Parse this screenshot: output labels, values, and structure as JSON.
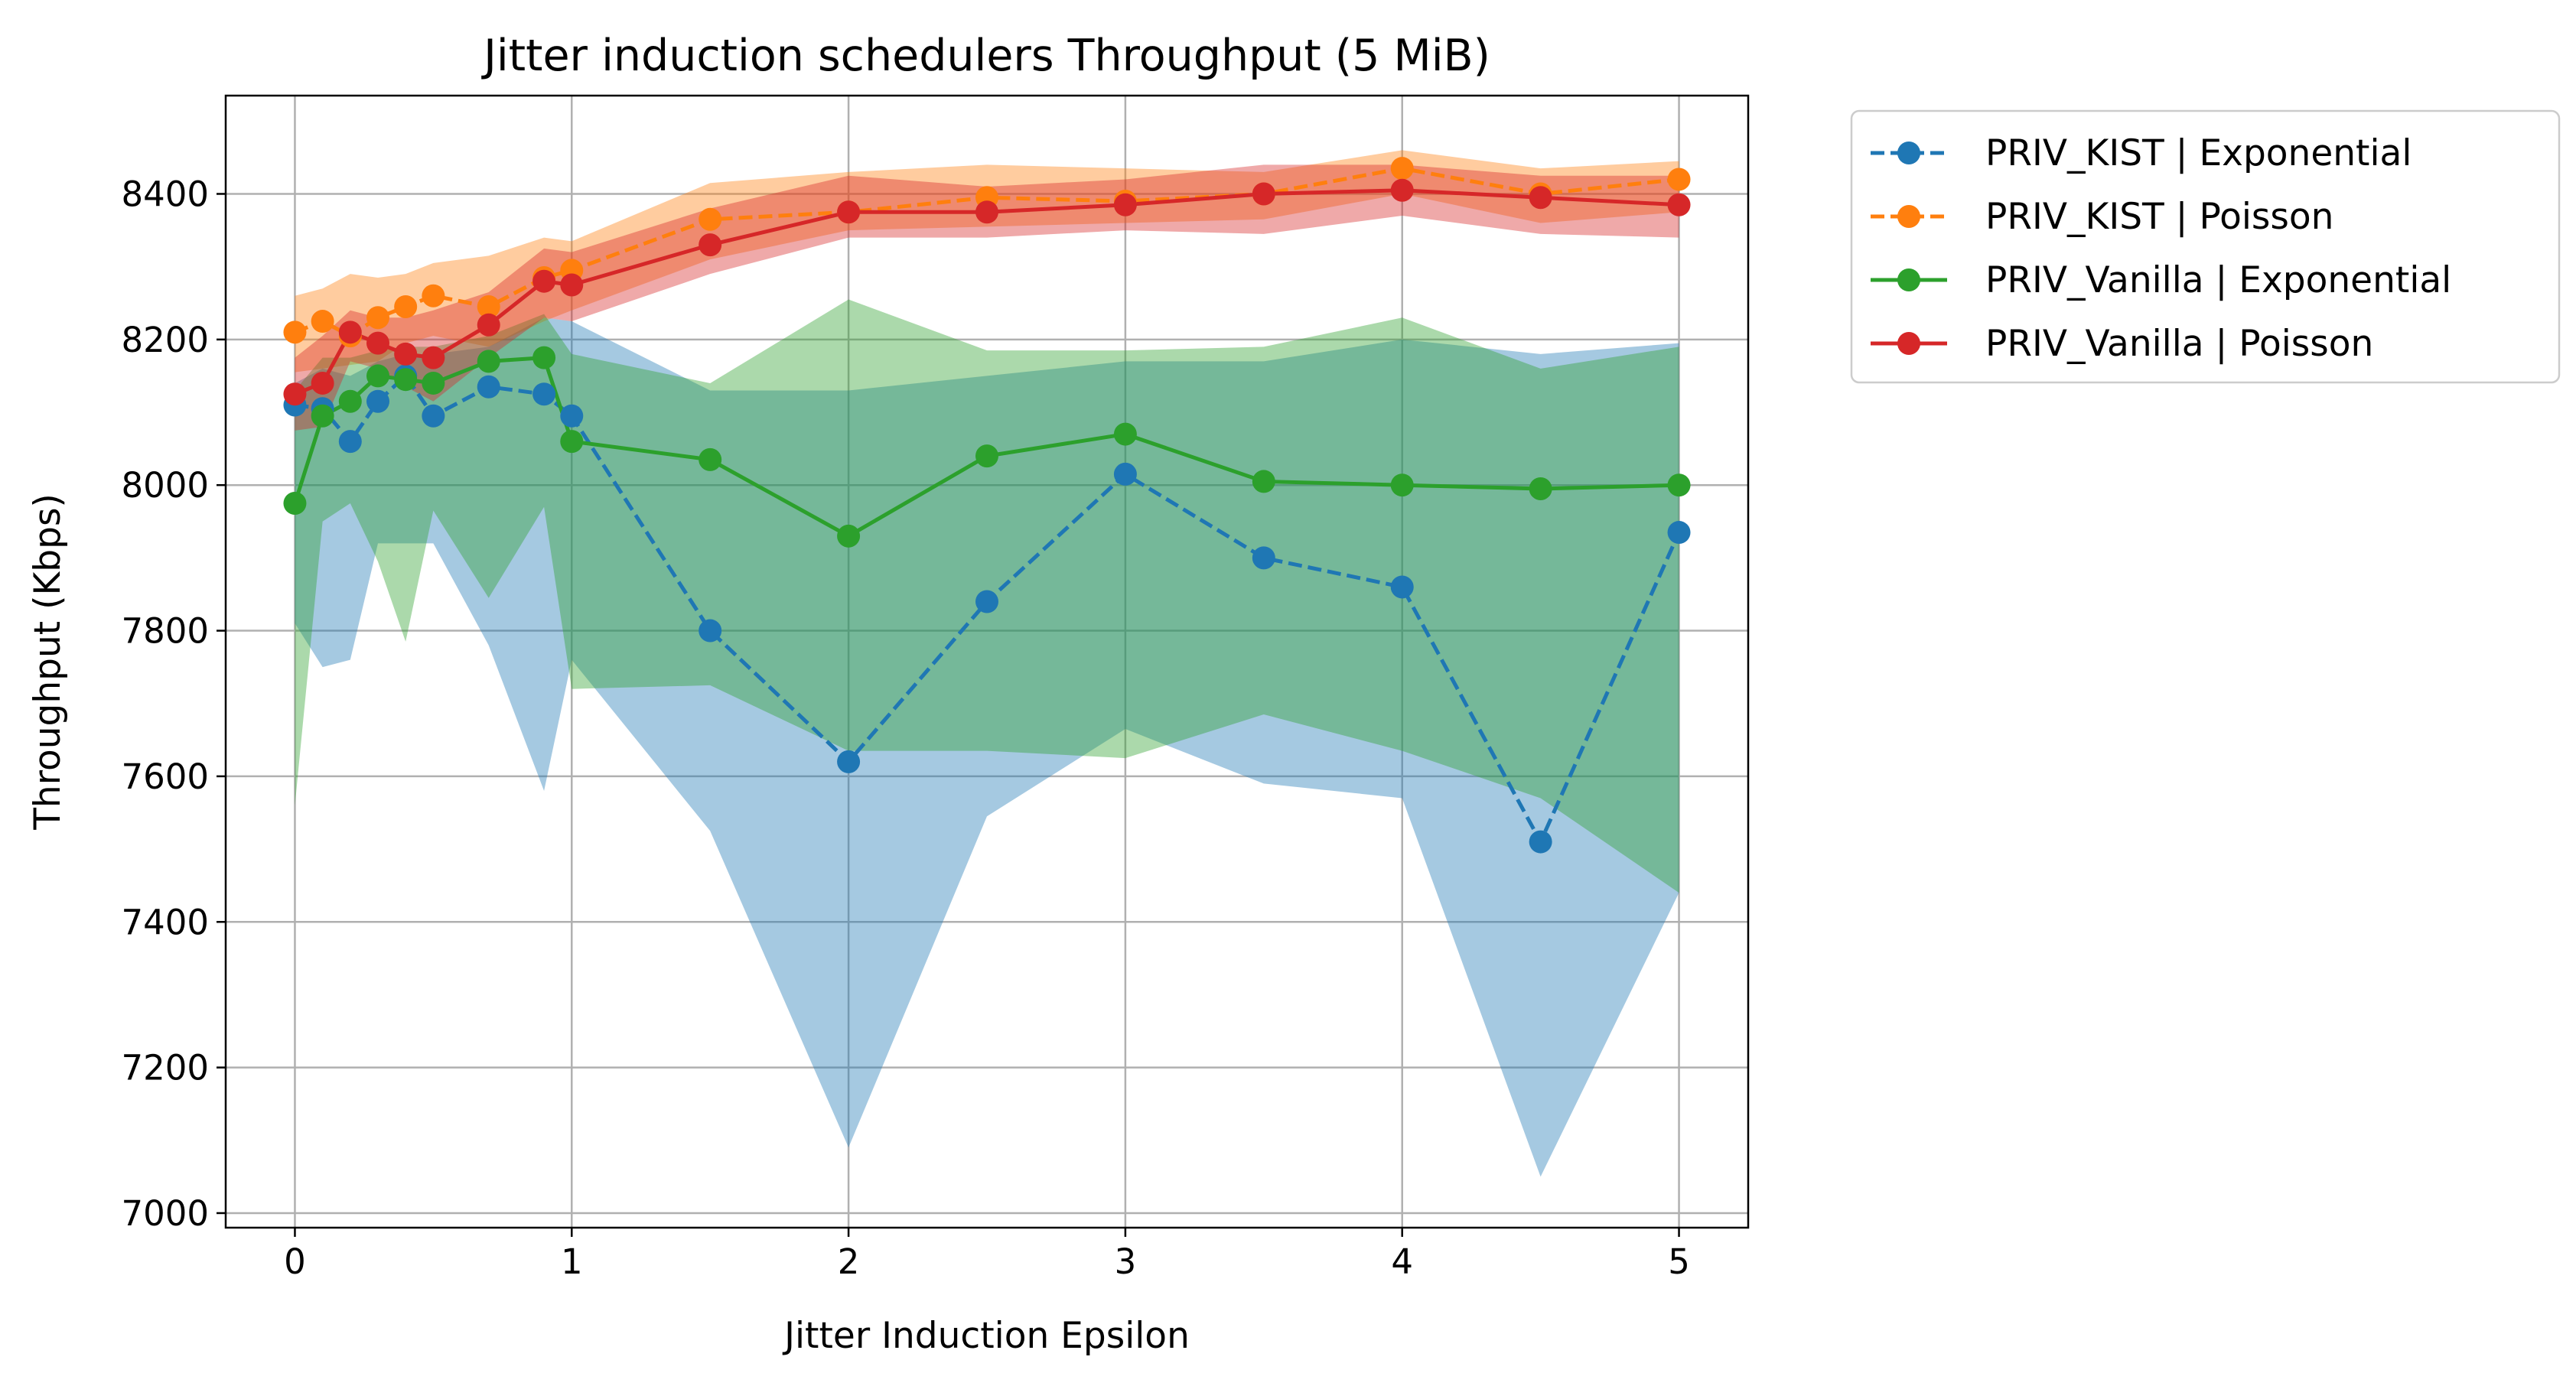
{
  "chart_data": {
    "type": "line",
    "title": "Jitter induction schedulers Throughput (5 MiB)",
    "xlabel": "Jitter Induction Epsilon",
    "ylabel": "Throughput (Kbps)",
    "xlim": [
      -0.25,
      5.25
    ],
    "ylim": [
      6980,
      8535
    ],
    "xticks": [
      0,
      1,
      2,
      3,
      4,
      5
    ],
    "yticks": [
      7000,
      7200,
      7400,
      7600,
      7800,
      8000,
      8200,
      8400
    ],
    "grid": true,
    "legend_position": "outside top-right",
    "x": [
      0,
      0.1,
      0.2,
      0.3,
      0.4,
      0.5,
      0.7,
      0.9,
      1,
      1.5,
      2,
      2.5,
      3,
      3.5,
      4,
      4.5,
      5
    ],
    "series": [
      {
        "name": "PRIV_KIST | Exponential",
        "color": "#1f77b4",
        "line_style": "dashed",
        "marker": "circle",
        "values": [
          8110,
          8105,
          8060,
          8115,
          8150,
          8095,
          8135,
          8125,
          8095,
          7800,
          7620,
          7840,
          8015,
          7900,
          7860,
          7510,
          7935
        ],
        "band_upper": [
          8140,
          8160,
          8150,
          8170,
          8180,
          8180,
          8190,
          8230,
          8225,
          8130,
          8130,
          8150,
          8170,
          8170,
          8200,
          8180,
          8195
        ],
        "band_lower": [
          7810,
          7750,
          7760,
          7920,
          7920,
          7920,
          7780,
          7580,
          7760,
          7525,
          7090,
          7545,
          7665,
          7590,
          7570,
          7050,
          7440
        ]
      },
      {
        "name": "PRIV_KIST | Poisson",
        "color": "#ff7f0e",
        "line_style": "dashed",
        "marker": "circle",
        "values": [
          8210,
          8225,
          8205,
          8230,
          8245,
          8260,
          8245,
          8285,
          8295,
          8365,
          8375,
          8395,
          8390,
          8400,
          8435,
          8400,
          8420
        ],
        "band_upper": [
          8260,
          8270,
          8290,
          8285,
          8290,
          8305,
          8315,
          8340,
          8335,
          8415,
          8430,
          8440,
          8435,
          8430,
          8460,
          8435,
          8445
        ],
        "band_lower": [
          8155,
          8160,
          8165,
          8170,
          8195,
          8205,
          8190,
          8225,
          8240,
          8310,
          8350,
          8355,
          8360,
          8365,
          8400,
          8360,
          8375
        ]
      },
      {
        "name": "PRIV_Vanilla | Exponential",
        "color": "#2ca02c",
        "line_style": "solid",
        "marker": "circle",
        "values": [
          7975,
          8095,
          8115,
          8150,
          8145,
          8140,
          8170,
          8175,
          8060,
          8035,
          7930,
          8040,
          8070,
          8005,
          8000,
          7995,
          8000
        ],
        "band_upper": [
          8130,
          8175,
          8175,
          8185,
          8190,
          8190,
          8205,
          8235,
          8180,
          8140,
          8255,
          8185,
          8185,
          8190,
          8230,
          8160,
          8190
        ],
        "band_lower": [
          7560,
          7950,
          7975,
          7895,
          7785,
          7965,
          7845,
          7970,
          7720,
          7725,
          7635,
          7635,
          7625,
          7685,
          7635,
          7570,
          7440
        ]
      },
      {
        "name": "PRIV_Vanilla | Poisson",
        "color": "#d62728",
        "line_style": "solid",
        "marker": "circle",
        "values": [
          8125,
          8140,
          8210,
          8195,
          8180,
          8175,
          8220,
          8280,
          8275,
          8330,
          8375,
          8375,
          8385,
          8400,
          8405,
          8395,
          8385
        ],
        "band_upper": [
          8175,
          8205,
          8240,
          8230,
          8230,
          8240,
          8265,
          8325,
          8320,
          8380,
          8425,
          8410,
          8420,
          8440,
          8440,
          8425,
          8425
        ],
        "band_lower": [
          8075,
          8080,
          8170,
          8160,
          8135,
          8115,
          8175,
          8230,
          8225,
          8290,
          8340,
          8340,
          8350,
          8345,
          8370,
          8345,
          8340
        ]
      }
    ]
  }
}
